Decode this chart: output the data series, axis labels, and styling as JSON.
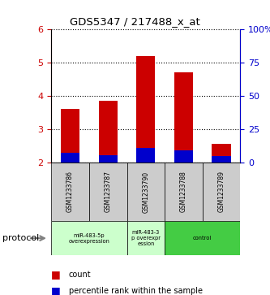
{
  "title": "GDS5347 / 217488_x_at",
  "samples": [
    "GSM1233786",
    "GSM1233787",
    "GSM1233790",
    "GSM1233788",
    "GSM1233789"
  ],
  "count_values": [
    3.6,
    3.85,
    5.2,
    4.7,
    2.55
  ],
  "percentile_values": [
    2.28,
    2.22,
    2.42,
    2.37,
    2.18
  ],
  "ylim": [
    2.0,
    6.0
  ],
  "yticks_left": [
    2,
    3,
    4,
    5,
    6
  ],
  "yticks_right": [
    0,
    25,
    50,
    75,
    100
  ],
  "groups": [
    {
      "label": "miR-483-5p\noverexpression",
      "samples": [
        0,
        1
      ],
      "color": "#ccffcc"
    },
    {
      "label": "miR-483-3\np overexpr\nession",
      "samples": [
        2
      ],
      "color": "#ccffcc"
    },
    {
      "label": "control",
      "samples": [
        3,
        4
      ],
      "color": "#44cc44"
    }
  ],
  "bar_color_red": "#cc0000",
  "bar_color_blue": "#0000cc",
  "bar_width": 0.5,
  "bg_color_sample_row": "#cccccc",
  "left_axis_color": "#cc0000",
  "right_axis_color": "#0000cc",
  "legend_count_label": "count",
  "legend_percentile_label": "percentile rank within the sample",
  "protocol_label": "protocol"
}
